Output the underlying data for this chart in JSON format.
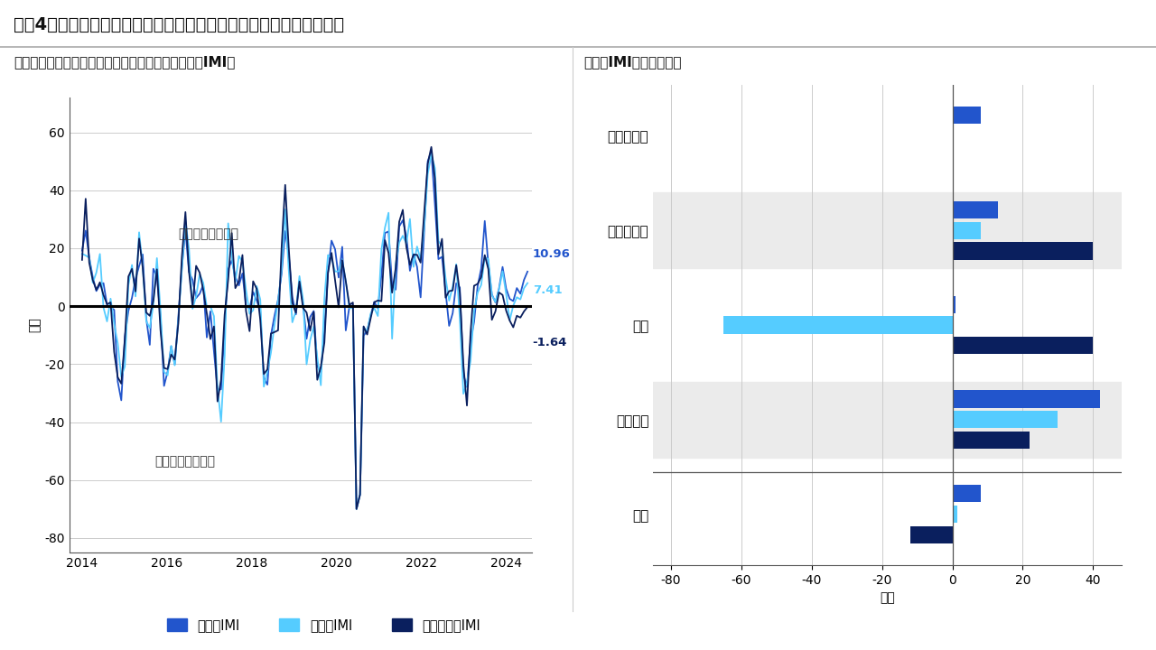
{
  "title": "図表4：欧州と米国でインフレ・モメンタムが再び高まる兆しがある",
  "left_subtitle": "地域別インフレ・モメンタム・インディケーター（IMI）",
  "right_subtitle": "地域別IMI：カテゴリー",
  "left_ylabel": "指数",
  "left_xlabel_years": [
    2014,
    2016,
    2018,
    2020,
    2022,
    2024
  ],
  "line_end_values": {
    "us": 10.96,
    "uk": 7.41,
    "euro": -1.64
  },
  "line_end_labels": [
    "10.96",
    "7.41",
    "-1.64"
  ],
  "annotation_up": "インフレ率が上昇",
  "annotation_down": "インフレ率が低下",
  "colors": {
    "us": "#2255CC",
    "uk": "#55CCFF",
    "euro": "#0A1F5E",
    "background_alt": "#EBEBEB",
    "grid": "#CCCCCC",
    "zero_line": "#000000"
  },
  "bar_categories": [
    "消費者物価",
    "生産者物価",
    "賃金",
    "輸入物価",
    "合計"
  ],
  "bar_shaded": [
    false,
    true,
    false,
    true,
    false
  ],
  "bar_data": {
    "us": [
      8,
      13,
      1,
      42,
      8
    ],
    "uk": [
      0.5,
      8,
      -65,
      30,
      1.5
    ],
    "euro": [
      0,
      40,
      40,
      22,
      -12
    ]
  },
  "bar_xlabel": "指数",
  "bar_xlim": [
    -85,
    48
  ],
  "bar_xticks": [
    -80,
    -60,
    -40,
    -20,
    0,
    20,
    40
  ],
  "legend_labels": [
    "米国のIMI",
    "英国のIMI",
    "ユーロ圏のIMI"
  ],
  "legend_colors": [
    "#2255CC",
    "#55CCFF",
    "#0A1F5E"
  ],
  "left_ylim": [
    -85,
    72
  ],
  "left_yticks": [
    -80,
    -60,
    -40,
    -20,
    0,
    20,
    40,
    60
  ]
}
